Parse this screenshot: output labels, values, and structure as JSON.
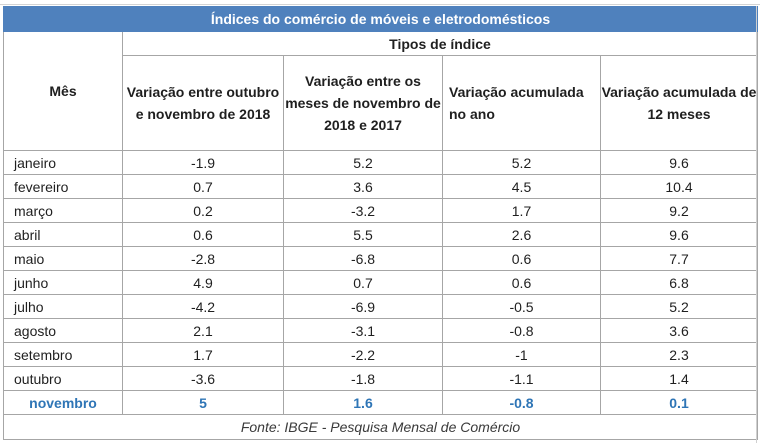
{
  "table": {
    "title": "Índices do comércio de móveis e eletrodomésticos",
    "month_header": "Mês",
    "group_header": "Tipos de índice",
    "columns": [
      "Variação entre outubro e novembro de 2018",
      "Variação entre os meses de novembro de 2018 e 2017",
      "Variação acumulada no ano",
      "Variação acumulada de 12 meses"
    ],
    "rows": [
      {
        "month": "janeiro",
        "values": [
          "-1.9",
          "5.2",
          "5.2",
          "9.6"
        ]
      },
      {
        "month": "fevereiro",
        "values": [
          "0.7",
          "3.6",
          "4.5",
          "10.4"
        ]
      },
      {
        "month": "março",
        "values": [
          "0.2",
          "-3.2",
          "1.7",
          "9.2"
        ]
      },
      {
        "month": "abril",
        "values": [
          "0.6",
          "5.5",
          "2.6",
          "9.6"
        ]
      },
      {
        "month": "maio",
        "values": [
          "-2.8",
          "-6.8",
          "0.6",
          "7.7"
        ]
      },
      {
        "month": "junho",
        "values": [
          "4.9",
          "0.7",
          "0.6",
          "6.8"
        ]
      },
      {
        "month": "julho",
        "values": [
          "-4.2",
          "-6.9",
          "-0.5",
          "5.2"
        ]
      },
      {
        "month": "agosto",
        "values": [
          "2.1",
          "-3.1",
          "-0.8",
          "3.6"
        ]
      },
      {
        "month": "setembro",
        "values": [
          "1.7",
          "-2.2",
          "-1",
          "2.3"
        ]
      },
      {
        "month": "outubro",
        "values": [
          "-3.6",
          "-1.8",
          "-1.1",
          "1.4"
        ]
      },
      {
        "month": "novembro",
        "values": [
          "5",
          "1.6",
          "-0.8",
          "0.1"
        ]
      }
    ],
    "source": "Fonte: IBGE - Pesquisa Mensal de Comércio"
  },
  "colors": {
    "title_background": "#4f81bd",
    "title_text": "#ffffff",
    "highlight_text": "#2e75b6",
    "grid_line": "#a6a6a6"
  }
}
